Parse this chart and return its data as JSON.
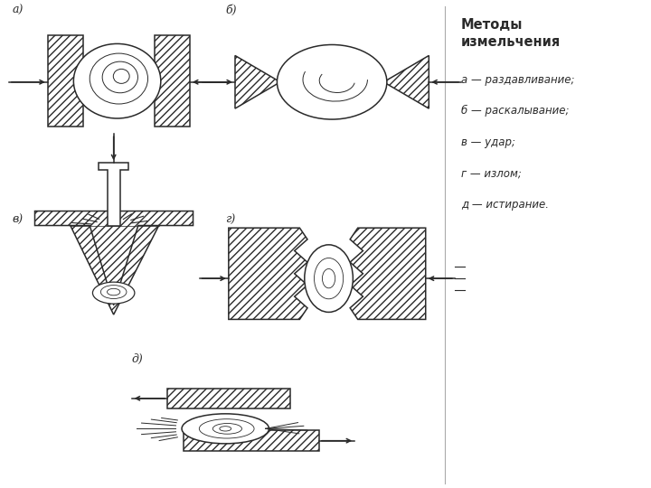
{
  "title": "Методы\nизмельчения",
  "legend": [
    "а — раздавливание;",
    "б — раскалывание;",
    "в — удар;",
    "г — излом;",
    "д — истирание."
  ],
  "labels": [
    "а)",
    "б)",
    "в)",
    "г)",
    "д)"
  ],
  "bg_color": "#ffffff",
  "line_color": "#2a2a2a",
  "fig_bg": "#ffffff"
}
